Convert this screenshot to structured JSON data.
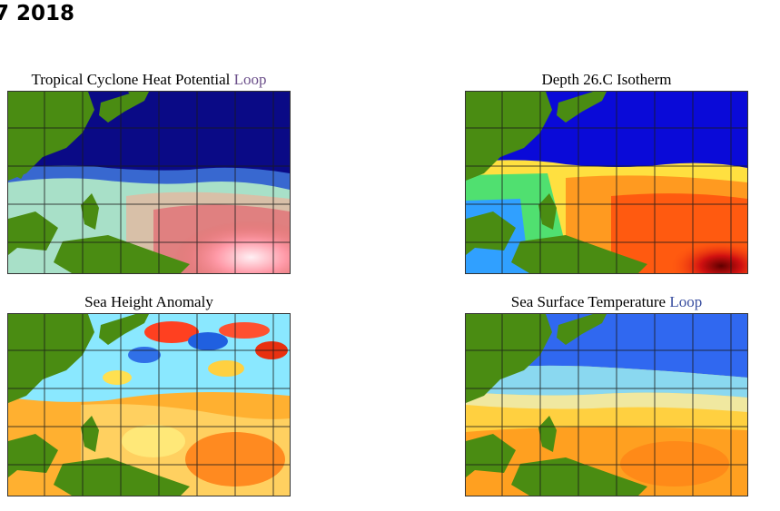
{
  "page": {
    "title": "7 2018"
  },
  "panels": [
    {
      "id": "tchp",
      "label": "Tropical Cyclone Heat Potential",
      "link": "Loop"
    },
    {
      "id": "d26",
      "label": "Depth 26.C Isotherm",
      "link": ""
    },
    {
      "id": "sha",
      "label": "Sea Height Anomaly",
      "link": ""
    },
    {
      "id": "sst",
      "label": "Sea Surface Temperature",
      "link": "Loop"
    }
  ],
  "colors": {
    "land": "#4a8c12",
    "grid": "#1a1a1a",
    "deep_blue": "#0a0a9a",
    "light_blue": "#66e0ff",
    "yellow": "#ffe030",
    "orange": "#ff9a20",
    "red": "#e83010"
  }
}
